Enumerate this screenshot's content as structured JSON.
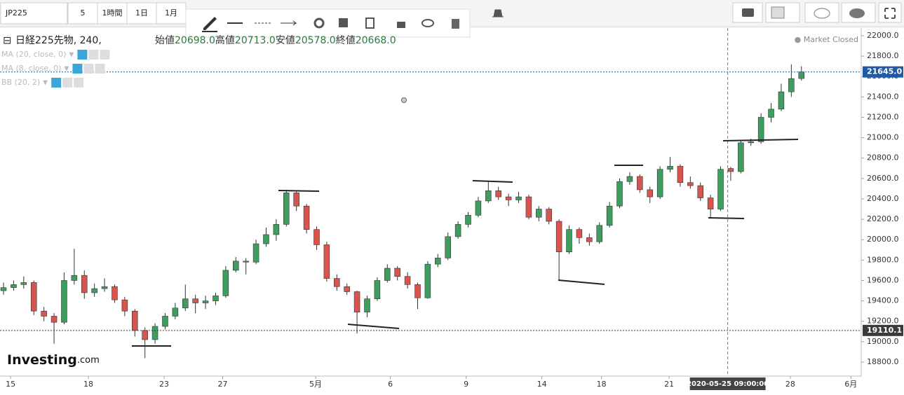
{
  "toolbar": {
    "symbol": "JP225",
    "intervals": [
      "5",
      "1時間",
      "1日",
      "1月"
    ]
  },
  "legend": {
    "instrument": "日経225先物, 240,",
    "ohlc": [
      {
        "name": "始値",
        "value": "20698.0"
      },
      {
        "name": "高値",
        "value": "20713.0"
      },
      {
        "name": "安値",
        "value": "20578.0"
      },
      {
        "name": "終値",
        "value": "20668.0"
      }
    ],
    "indicators": [
      "MA (20, close, 0)",
      "MA (8, close, 0)",
      "BB (20, 2)"
    ],
    "status": "Market Closed",
    "brand": "Investing",
    "brand_suffix": ".com"
  },
  "chart_data": {
    "type": "candlestick",
    "up_color": "#3f9e5f",
    "down_color": "#d9534f",
    "candles": [
      [
        19500,
        19580,
        19460,
        19530
      ],
      [
        19530,
        19600,
        19500,
        19560
      ],
      [
        19560,
        19640,
        19520,
        19580
      ],
      [
        19580,
        19600,
        19260,
        19300
      ],
      [
        19300,
        19340,
        19200,
        19250
      ],
      [
        19250,
        19280,
        18980,
        19190
      ],
      [
        19190,
        19680,
        19170,
        19600
      ],
      [
        19600,
        19910,
        19560,
        19650
      ],
      [
        19650,
        19700,
        19420,
        19480
      ],
      [
        19480,
        19570,
        19440,
        19520
      ],
      [
        19520,
        19620,
        19490,
        19540
      ],
      [
        19540,
        19560,
        19380,
        19410
      ],
      [
        19410,
        19440,
        19250,
        19300
      ],
      [
        19300,
        19320,
        19050,
        19110
      ],
      [
        19110,
        19140,
        18840,
        19020
      ],
      [
        19020,
        19180,
        18980,
        19150
      ],
      [
        19150,
        19280,
        19120,
        19250
      ],
      [
        19250,
        19380,
        19220,
        19330
      ],
      [
        19330,
        19560,
        19300,
        19420
      ],
      [
        19420,
        19460,
        19280,
        19380
      ],
      [
        19380,
        19450,
        19320,
        19400
      ],
      [
        19400,
        19480,
        19360,
        19450
      ],
      [
        19450,
        19740,
        19430,
        19700
      ],
      [
        19700,
        19830,
        19680,
        19790
      ],
      [
        19790,
        19820,
        19660,
        19780
      ],
      [
        19780,
        20000,
        19760,
        19960
      ],
      [
        19960,
        20120,
        19930,
        20050
      ],
      [
        20050,
        20200,
        19990,
        20150
      ],
      [
        20150,
        20490,
        20130,
        20460
      ],
      [
        20460,
        20480,
        20280,
        20330
      ],
      [
        20330,
        20350,
        20060,
        20100
      ],
      [
        20100,
        20130,
        19900,
        19950
      ],
      [
        19950,
        19980,
        19590,
        19620
      ],
      [
        19620,
        19660,
        19500,
        19540
      ],
      [
        19540,
        19570,
        19460,
        19490
      ],
      [
        19490,
        19500,
        19080,
        19290
      ],
      [
        19290,
        19450,
        19240,
        19420
      ],
      [
        19420,
        19630,
        19400,
        19600
      ],
      [
        19600,
        19760,
        19580,
        19720
      ],
      [
        19720,
        19740,
        19600,
        19640
      ],
      [
        19640,
        19680,
        19520,
        19560
      ],
      [
        19560,
        19580,
        19320,
        19430
      ],
      [
        19430,
        19790,
        19420,
        19760
      ],
      [
        19760,
        19860,
        19730,
        19820
      ],
      [
        19820,
        20070,
        19800,
        20030
      ],
      [
        20030,
        20180,
        20010,
        20150
      ],
      [
        20150,
        20270,
        20120,
        20240
      ],
      [
        20240,
        20420,
        20220,
        20380
      ],
      [
        20380,
        20580,
        20360,
        20480
      ],
      [
        20480,
        20520,
        20390,
        20420
      ],
      [
        20420,
        20450,
        20330,
        20390
      ],
      [
        20390,
        20470,
        20360,
        20420
      ],
      [
        20420,
        20440,
        20200,
        20220
      ],
      [
        20220,
        20330,
        20180,
        20300
      ],
      [
        20300,
        20320,
        20150,
        20180
      ],
      [
        20180,
        20200,
        19600,
        19880
      ],
      [
        19880,
        20140,
        19860,
        20100
      ],
      [
        20100,
        20120,
        19960,
        20020
      ],
      [
        20020,
        20060,
        19940,
        19980
      ],
      [
        19980,
        20170,
        19960,
        20140
      ],
      [
        20140,
        20370,
        20120,
        20330
      ],
      [
        20330,
        20600,
        20310,
        20570
      ],
      [
        20570,
        20660,
        20540,
        20620
      ],
      [
        20620,
        20640,
        20460,
        20490
      ],
      [
        20490,
        20520,
        20360,
        20420
      ],
      [
        20420,
        20720,
        20400,
        20690
      ],
      [
        20690,
        20810,
        20660,
        20720
      ],
      [
        20720,
        20740,
        20520,
        20560
      ],
      [
        20560,
        20620,
        20500,
        20530
      ],
      [
        20530,
        20560,
        20380,
        20410
      ],
      [
        20410,
        20440,
        20210,
        20300
      ],
      [
        20300,
        20720,
        20280,
        20690
      ],
      [
        20698,
        20713,
        20578,
        20668
      ],
      [
        20668,
        20970,
        20650,
        20950
      ],
      [
        20950,
        20990,
        20920,
        20960
      ],
      [
        20960,
        21240,
        20940,
        21200
      ],
      [
        21200,
        21340,
        21150,
        21280
      ],
      [
        21280,
        21530,
        21260,
        21450
      ],
      [
        21450,
        21720,
        21400,
        21580
      ],
      [
        21580,
        21700,
        21560,
        21645
      ]
    ],
    "xlim": [
      -0.35,
      84.92
    ],
    "xticks": [
      {
        "value": 0.7,
        "label": "15"
      },
      {
        "value": 8.4,
        "label": "18"
      },
      {
        "value": 15.9,
        "label": "23"
      },
      {
        "value": 21.7,
        "label": "27"
      },
      {
        "value": 30.9,
        "label": "5月"
      },
      {
        "value": 38.3,
        "label": "6"
      },
      {
        "value": 45.8,
        "label": "9"
      },
      {
        "value": 53.3,
        "label": "14"
      },
      {
        "value": 59.2,
        "label": "18"
      },
      {
        "value": 65.9,
        "label": "21"
      },
      {
        "value": 77.9,
        "label": "28"
      },
      {
        "value": 83.9,
        "label": "6月"
      }
    ],
    "ylim": [
      18662.6,
      22075.5
    ],
    "yticks": [
      {
        "value": 18800,
        "label": "18800.0"
      },
      {
        "value": 19000,
        "label": "19000.0"
      },
      {
        "value": 19200,
        "label": "19200.0"
      },
      {
        "value": 19400,
        "label": "19400.0"
      },
      {
        "value": 19600,
        "label": "19600.0"
      },
      {
        "value": 19800,
        "label": "19800.0"
      },
      {
        "value": 20000,
        "label": "20000.0"
      },
      {
        "value": 20200,
        "label": "20200.0"
      },
      {
        "value": 20400,
        "label": "20400.0"
      },
      {
        "value": 20600,
        "label": "20600.0"
      },
      {
        "value": 20800,
        "label": "20800.0"
      },
      {
        "value": 21000,
        "label": "21000.0"
      },
      {
        "value": 21200,
        "label": "21200.0"
      },
      {
        "value": 21400,
        "label": "21400.0"
      },
      {
        "value": 21600,
        "label": "21600.0"
      },
      {
        "value": 21800,
        "label": "21800.0"
      },
      {
        "value": 22000,
        "label": "22000.0"
      }
    ],
    "price_lines": [
      {
        "value": 21645,
        "label": "21645.0",
        "color": "#1e5aa8"
      },
      {
        "value": 19110.1,
        "label": "19110.1",
        "color": "#3a3a3a"
      }
    ],
    "crosshair": {
      "value": 71.7,
      "label": "2020-05-25 09:00:00"
    }
  }
}
